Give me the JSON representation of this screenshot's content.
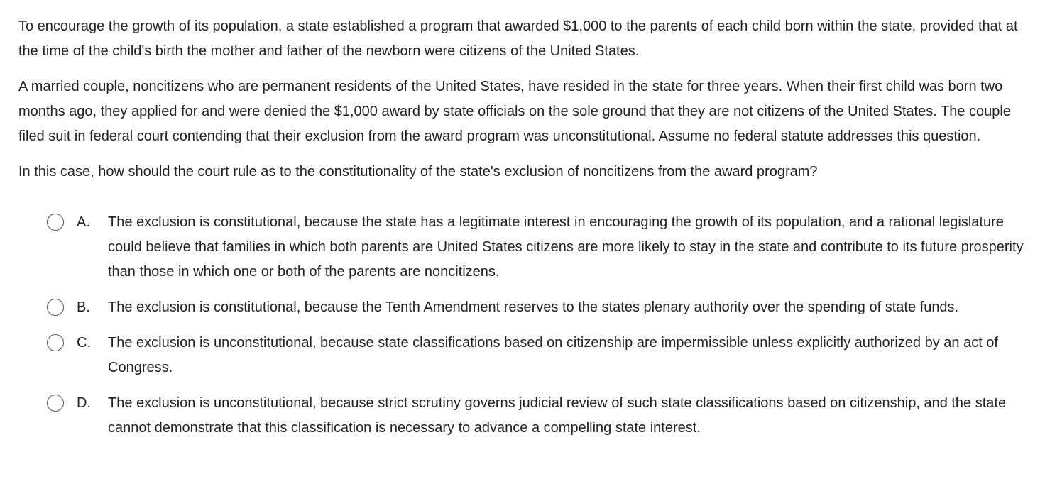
{
  "question": {
    "paragraphs": [
      "To encourage the growth of its population, a state established a program that awarded $1,000 to the parents of each child born within the state, provided that at the time of the child's birth the mother and father of the newborn were citizens of the United States.",
      "A married couple, noncitizens who are permanent residents of the United States, have resided in the state for three years.  When their first child was born two months ago, they applied for and were denied the $1,000 award by state officials on the sole ground that they are not citizens of the United States.  The couple filed suit in federal court contending that their exclusion from the award program was unconstitutional.  Assume no federal statute addresses this question.",
      "In this case, how should the court rule as to the constitutionality of the state's exclusion of noncitizens from the award program?"
    ]
  },
  "options": [
    {
      "letter": "A.",
      "text": "The exclusion is constitutional, because the state has a legitimate interest in encouraging the growth of its population, and a rational legislature could believe that families in which both parents are United States citizens are more likely to stay in the state and contribute to its future prosperity than those in which one or both of the parents are noncitizens."
    },
    {
      "letter": "B.",
      "text": "The exclusion is constitutional, because the Tenth Amendment reserves to the states plenary authority over the spending of state funds."
    },
    {
      "letter": "C.",
      "text": "The exclusion is unconstitutional, because state classifications based on citizenship are impermissible unless explicitly authorized by an act of Congress."
    },
    {
      "letter": "D.",
      "text": "The exclusion is unconstitutional, because strict scrutiny governs judicial review of such state classifications based on citizenship, and the state cannot demonstrate that this classification is necessary to advance a compelling state interest."
    }
  ]
}
